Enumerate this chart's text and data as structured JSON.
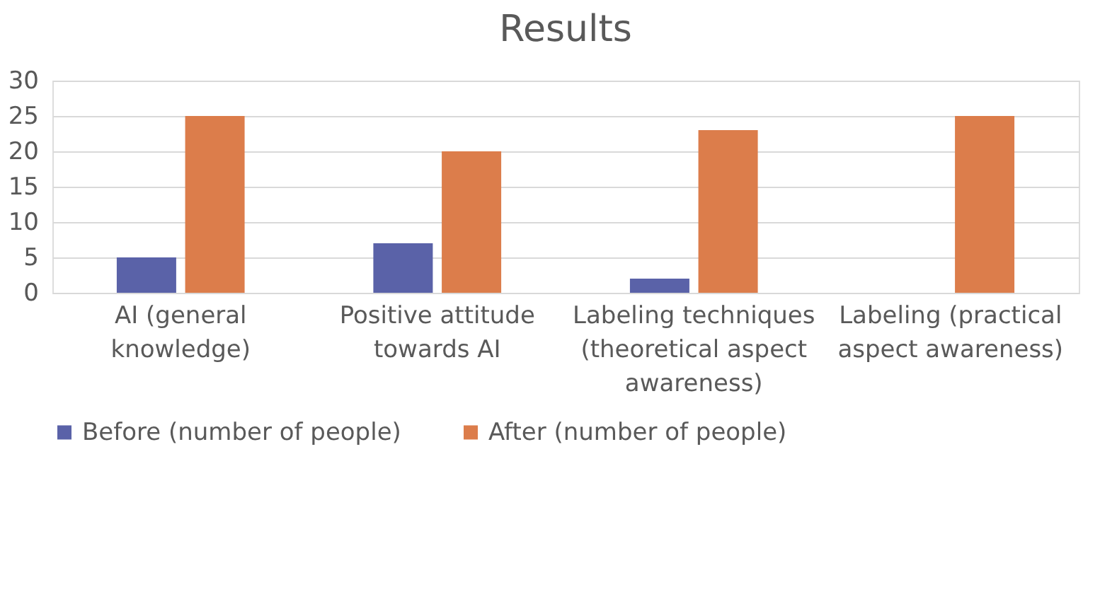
{
  "chart_data": {
    "type": "bar",
    "title": "Results",
    "categories": [
      "AI (general knowledge)",
      "Positive attitude towards AI",
      "Labeling techniques (theoretical aspect awareness)",
      "Labeling (practical aspect awareness)"
    ],
    "series": [
      {
        "name": "Before (number of people)",
        "color": "#5a62a8",
        "values": [
          5,
          7,
          2,
          0
        ]
      },
      {
        "name": "After (number of people)",
        "color": "#dc7d4b",
        "values": [
          25,
          20,
          23,
          25
        ]
      }
    ],
    "ylim": [
      0,
      30
    ],
    "yticks": [
      0,
      5,
      10,
      15,
      20,
      25,
      30
    ],
    "grid": "y",
    "legend": "bottom"
  }
}
